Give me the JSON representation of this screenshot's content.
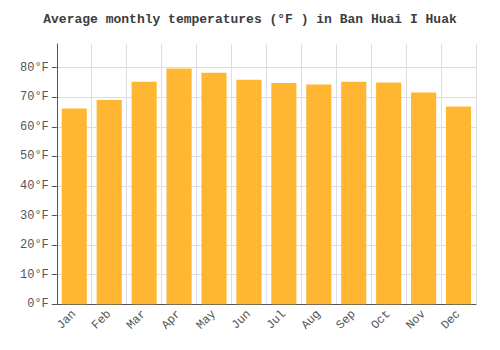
{
  "chart_data": {
    "type": "bar",
    "title": "Average monthly temperatures (°F ) in Ban Huai I Huak",
    "categories": [
      "Jan",
      "Feb",
      "Mar",
      "Apr",
      "May",
      "Jun",
      "Jul",
      "Aug",
      "Sep",
      "Oct",
      "Nov",
      "Dec"
    ],
    "values": [
      66.2,
      69.1,
      75.2,
      79.7,
      78.3,
      75.9,
      74.8,
      74.3,
      75.2,
      75.0,
      71.6,
      66.9
    ],
    "color": "#FFB733",
    "ylim": [
      0,
      88
    ],
    "yticks": [
      {
        "value": 0,
        "label": "0°F"
      },
      {
        "value": 10,
        "label": "10°F"
      },
      {
        "value": 20,
        "label": "20°F"
      },
      {
        "value": 30,
        "label": "30°F"
      },
      {
        "value": 40,
        "label": "40°F"
      },
      {
        "value": 50,
        "label": "50°F"
      },
      {
        "value": 60,
        "label": "60°F"
      },
      {
        "value": 70,
        "label": "70°F"
      },
      {
        "value": 80,
        "label": "80°F"
      }
    ],
    "grid": true
  }
}
